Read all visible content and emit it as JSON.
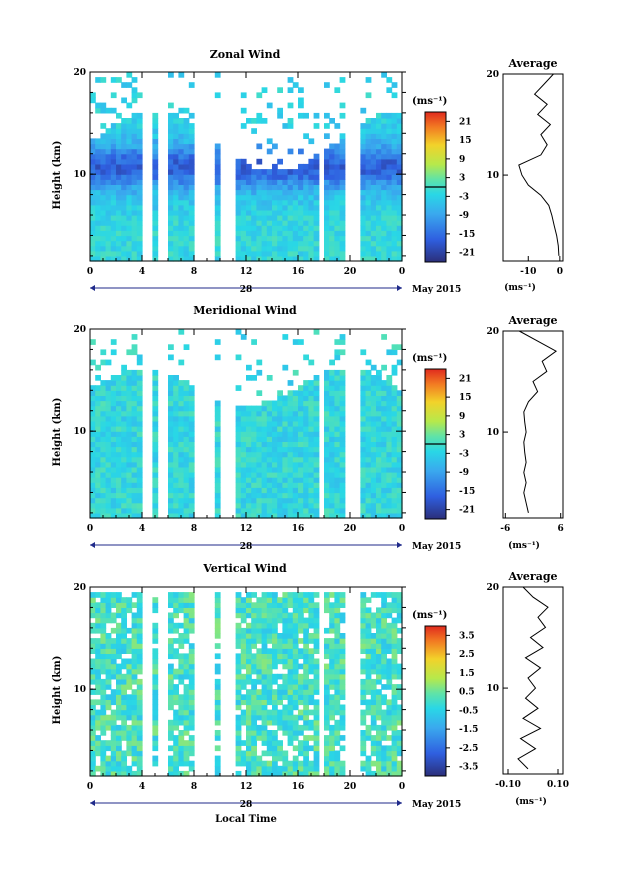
{
  "chart_data": [
    {
      "type": "heatmap",
      "title": "Zonal Wind",
      "ylabel": "Height (km)",
      "x_ticks": [
        "0",
        "4",
        "8",
        "12",
        "16",
        "20",
        "0"
      ],
      "y_ticks": [
        "10",
        "20"
      ],
      "xlim_hours": [
        0,
        24
      ],
      "ylim_km": [
        1.5,
        20
      ],
      "date_label": "28",
      "month_label": "May 2015",
      "colorbar": {
        "unit": "(ms⁻¹)",
        "ticks": [
          "21",
          "15",
          "9",
          "3",
          "-3",
          "-9",
          "-15",
          "-21"
        ],
        "range": [
          -24,
          24
        ]
      },
      "average_panel": {
        "title": "Average",
        "x_ticks": [
          "-10",
          "0"
        ],
        "xlim": [
          -18,
          1
        ],
        "xlabel": "(ms⁻¹)",
        "y_ticks": [
          "10",
          "20"
        ],
        "profile": [
          [
            2,
            -0.3
          ],
          [
            3,
            -0.5
          ],
          [
            4,
            -1
          ],
          [
            5,
            -1.8
          ],
          [
            6,
            -2.5
          ],
          [
            7,
            -3.5
          ],
          [
            8,
            -6
          ],
          [
            9,
            -10
          ],
          [
            10,
            -12
          ],
          [
            11,
            -13
          ],
          [
            12,
            -6
          ],
          [
            13,
            -4
          ],
          [
            14,
            -6
          ],
          [
            15,
            -3
          ],
          [
            16,
            -7
          ],
          [
            17,
            -4
          ],
          [
            18,
            -8
          ],
          [
            19,
            -5
          ],
          [
            20,
            -2
          ]
        ]
      }
    },
    {
      "type": "heatmap",
      "title": "Meridional Wind",
      "ylabel": "Height (km)",
      "x_ticks": [
        "0",
        "4",
        "8",
        "12",
        "16",
        "20",
        "0"
      ],
      "y_ticks": [
        "10",
        "20"
      ],
      "xlim_hours": [
        0,
        24
      ],
      "ylim_km": [
        1.5,
        20
      ],
      "date_label": "28",
      "month_label": "May 2015",
      "colorbar": {
        "unit": "(ms⁻¹)",
        "ticks": [
          "21",
          "15",
          "9",
          "3",
          "-3",
          "-9",
          "-15",
          "-21"
        ],
        "range": [
          -24,
          24
        ]
      },
      "average_panel": {
        "title": "Average",
        "x_ticks": [
          "-6",
          "6"
        ],
        "xlim": [
          -6.5,
          6.5
        ],
        "xlabel": "(ms⁻¹)",
        "y_ticks": [
          "10",
          "20"
        ],
        "profile": [
          [
            2,
            -1
          ],
          [
            3,
            -1.5
          ],
          [
            4,
            -2
          ],
          [
            5,
            -1.5
          ],
          [
            6,
            -2
          ],
          [
            7,
            -1.5
          ],
          [
            8,
            -1.8
          ],
          [
            9,
            -2
          ],
          [
            10,
            -1.5
          ],
          [
            11,
            -1.8
          ],
          [
            12,
            -2
          ],
          [
            13,
            -1
          ],
          [
            14,
            1
          ],
          [
            15,
            0
          ],
          [
            16,
            3
          ],
          [
            17,
            2
          ],
          [
            18,
            5
          ],
          [
            19,
            1
          ],
          [
            20,
            -3
          ]
        ]
      }
    },
    {
      "type": "heatmap",
      "title": "Vertical Wind",
      "ylabel": "Height (km)",
      "xlabel": "Local Time",
      "x_ticks": [
        "0",
        "4",
        "8",
        "12",
        "16",
        "20",
        "0"
      ],
      "y_ticks": [
        "10",
        "20"
      ],
      "xlim_hours": [
        0,
        24
      ],
      "ylim_km": [
        1.5,
        20
      ],
      "date_label": "28",
      "month_label": "May 2015",
      "colorbar": {
        "unit": "(ms⁻¹)",
        "ticks": [
          "3.5",
          "2.5",
          "1.5",
          "0.5",
          "-0.5",
          "-1.5",
          "-2.5",
          "-3.5"
        ],
        "range": [
          -4,
          4
        ]
      },
      "average_panel": {
        "title": "Average",
        "x_ticks": [
          "-0.10",
          "0.10"
        ],
        "xlim": [
          -0.12,
          0.12
        ],
        "xlabel": "(ms⁻¹)",
        "y_ticks": [
          "10",
          "20"
        ],
        "profile": [
          [
            2,
            -0.02
          ],
          [
            3,
            -0.06
          ],
          [
            4,
            0.01
          ],
          [
            5,
            -0.05
          ],
          [
            6,
            0.03
          ],
          [
            7,
            -0.04
          ],
          [
            8,
            0.02
          ],
          [
            9,
            -0.03
          ],
          [
            10,
            0.01
          ],
          [
            11,
            -0.02
          ],
          [
            12,
            0.03
          ],
          [
            13,
            -0.03
          ],
          [
            14,
            0.04
          ],
          [
            15,
            -0.01
          ],
          [
            16,
            0.05
          ],
          [
            17,
            0.02
          ],
          [
            18,
            0.06
          ],
          [
            19,
            0.0
          ],
          [
            20,
            -0.04
          ]
        ]
      }
    }
  ]
}
